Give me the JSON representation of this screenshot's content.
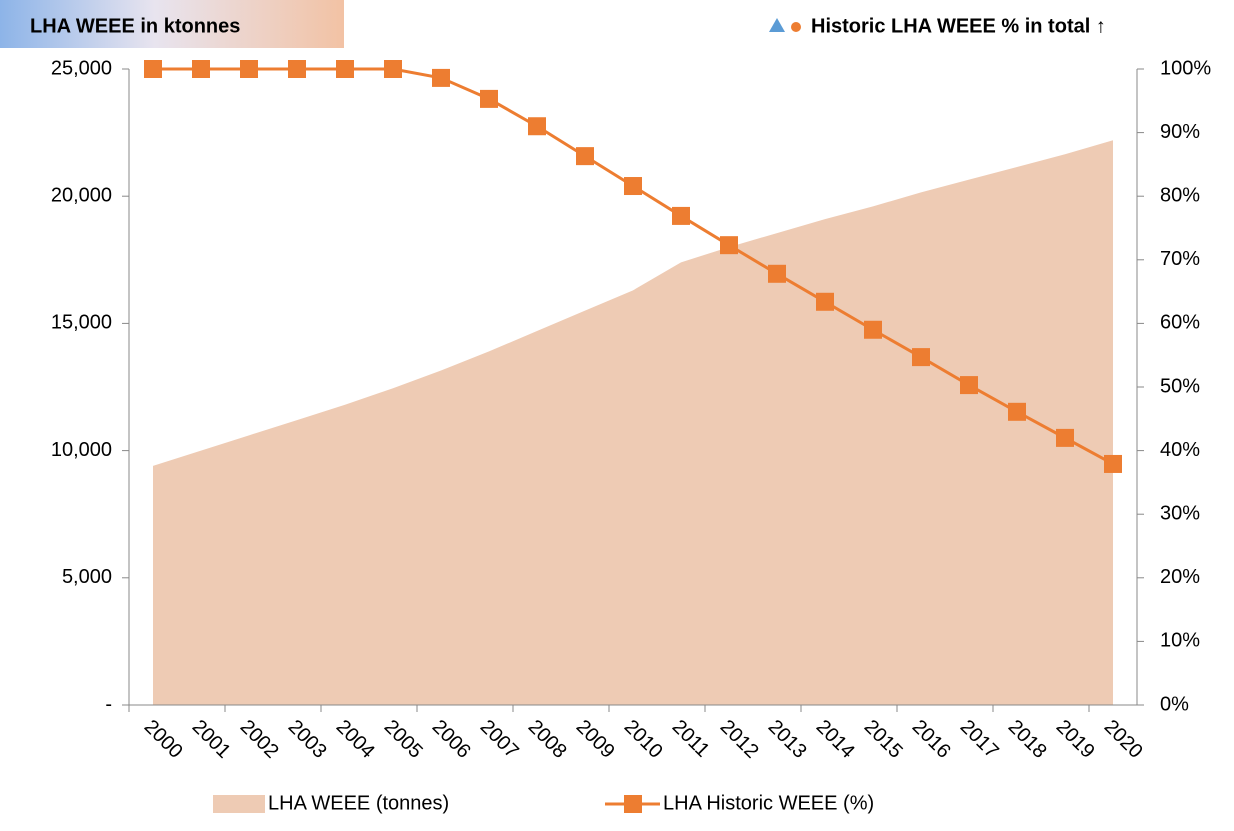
{
  "chart_data": {
    "type": "area_line",
    "title": "LHA WEEE in ktonnes",
    "right_title": "Historic LHA WEEE % in total ↑",
    "categories": [
      "2000",
      "2001",
      "2002",
      "2003",
      "2004",
      "2005",
      "2006",
      "2007",
      "2008",
      "2009",
      "2010",
      "2011",
      "2012",
      "2013",
      "2014",
      "2015",
      "2016",
      "2017",
      "2018",
      "2019",
      "2020"
    ],
    "series": [
      {
        "name": "LHA WEEE (tonnes)",
        "color": "#eecbb4",
        "kind": "area",
        "values": [
          9400,
          10000,
          10600,
          11200,
          11800,
          12450,
          13150,
          13900,
          14700,
          15500,
          16300,
          17400,
          18000,
          18550,
          19100,
          19600,
          20150,
          20650,
          21150,
          21650,
          22200
        ]
      },
      {
        "name": "LHA Historic WEEE (%)",
        "color": "#ed7d31",
        "kind": "line",
        "axis": "y2",
        "values": [
          100,
          100,
          100,
          100,
          100,
          100,
          98.6,
          95.3,
          91,
          86.3,
          81.6,
          76.9,
          72.3,
          67.8,
          63.4,
          59,
          54.7,
          50.3,
          46.1,
          42,
          37.9
        ]
      }
    ],
    "ylim": [
      0,
      25000
    ],
    "yticks": [
      {
        "value": 0,
        "label": "-"
      },
      {
        "value": 5000,
        "label": "5,000"
      },
      {
        "value": 10000,
        "label": "10,000"
      },
      {
        "value": 15000,
        "label": "15,000"
      },
      {
        "value": 20000,
        "label": "20,000"
      },
      {
        "value": 25000,
        "label": "25,000"
      }
    ],
    "y2lim": [
      0,
      100
    ],
    "y2ticks": [
      {
        "value": 0,
        "label": "0%"
      },
      {
        "value": 10,
        "label": "10%"
      },
      {
        "value": 20,
        "label": "20%"
      },
      {
        "value": 30,
        "label": "30%"
      },
      {
        "value": 40,
        "label": "40%"
      },
      {
        "value": 50,
        "label": "50%"
      },
      {
        "value": 60,
        "label": "60%"
      },
      {
        "value": 70,
        "label": "70%"
      },
      {
        "value": 80,
        "label": "80%"
      },
      {
        "value": 90,
        "label": "90%"
      },
      {
        "value": 100,
        "label": "100%"
      }
    ],
    "grid": false,
    "legend": "bottom"
  }
}
